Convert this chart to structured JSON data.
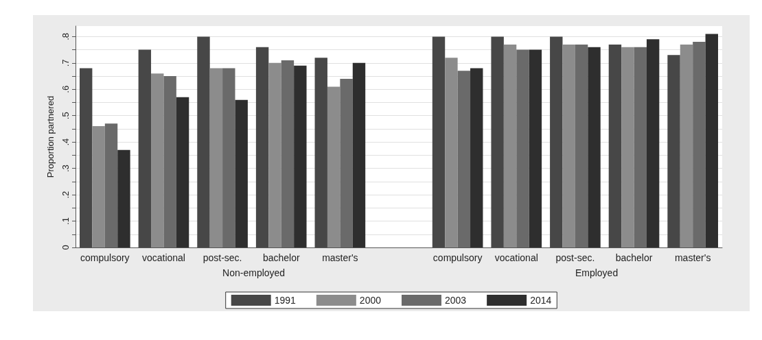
{
  "chart_data": {
    "type": "bar",
    "ylabel": "Proportion partnered",
    "categories": [
      "compulsory",
      "vocational",
      "post-sec.",
      "bachelor",
      "master's",
      null,
      "compulsory",
      "vocational",
      "post-sec.",
      "bachelor",
      "master's"
    ],
    "series": [
      {
        "name": "1991",
        "color": "#474747",
        "values": [
          0.68,
          0.75,
          0.8,
          0.76,
          0.72,
          null,
          0.8,
          0.8,
          0.8,
          0.77,
          0.73
        ]
      },
      {
        "name": "2000",
        "color": "#8c8c8c",
        "values": [
          0.46,
          0.66,
          0.68,
          0.7,
          0.61,
          null,
          0.72,
          0.77,
          0.77,
          0.76,
          0.77
        ]
      },
      {
        "name": "2003",
        "color": "#6a6a6a",
        "values": [
          0.47,
          0.65,
          0.68,
          0.71,
          0.64,
          null,
          0.67,
          0.75,
          0.77,
          0.76,
          0.78
        ]
      },
      {
        "name": "2014",
        "color": "#2e2e2e",
        "values": [
          0.37,
          0.57,
          0.56,
          0.69,
          0.7,
          null,
          0.68,
          0.75,
          0.76,
          0.79,
          0.81
        ]
      }
    ],
    "annotations": [
      "Non-employed",
      "Employed"
    ],
    "ylim": [
      0,
      0.84
    ],
    "yticks": [
      {
        "value": 0,
        "label": "0"
      },
      {
        "value": 0.05,
        "label": null
      },
      {
        "value": 0.1,
        "label": ".1"
      },
      {
        "value": 0.15,
        "label": null
      },
      {
        "value": 0.2,
        "label": ".2"
      },
      {
        "value": 0.25,
        "label": null
      },
      {
        "value": 0.3,
        "label": ".3"
      },
      {
        "value": 0.35,
        "label": null
      },
      {
        "value": 0.4,
        "label": ".4"
      },
      {
        "value": 0.45,
        "label": null
      },
      {
        "value": 0.5,
        "label": ".5"
      },
      {
        "value": 0.55,
        "label": null
      },
      {
        "value": 0.6,
        "label": ".6"
      },
      {
        "value": 0.65,
        "label": null
      },
      {
        "value": 0.7,
        "label": ".7"
      },
      {
        "value": 0.75,
        "label": null
      },
      {
        "value": 0.8,
        "label": ".8"
      }
    ],
    "grid": true,
    "legend": "bottom"
  }
}
